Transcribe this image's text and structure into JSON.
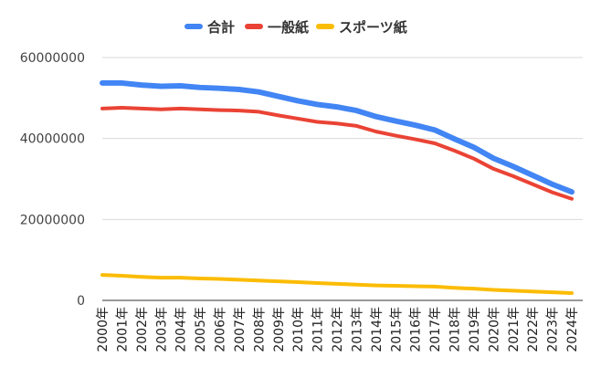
{
  "chart_data": {
    "type": "line",
    "title": "",
    "xlabel": "",
    "ylabel": "",
    "categories": [
      "2000年",
      "2001年",
      "2002年",
      "2003年",
      "2004年",
      "2005年",
      "2006年",
      "2007年",
      "2008年",
      "2009年",
      "2010年",
      "2011年",
      "2012年",
      "2013年",
      "2014年",
      "2015年",
      "2016年",
      "2017年",
      "2018年",
      "2019年",
      "2020年",
      "2021年",
      "2022年",
      "2023年",
      "2024年"
    ],
    "ylim": [
      0,
      60000000
    ],
    "yticks": [
      0,
      20000000,
      40000000,
      60000000
    ],
    "ytick_labels": [
      "0",
      "20000000",
      "40000000",
      "60000000"
    ],
    "grid": true,
    "legend_position": "top",
    "series": [
      {
        "name": "合計",
        "color": "#4285F4",
        "values": [
          53700000,
          53700000,
          53200000,
          52900000,
          53000000,
          52600000,
          52400000,
          52100000,
          51500000,
          50400000,
          49300000,
          48400000,
          47800000,
          46900000,
          45400000,
          44300000,
          43300000,
          42100000,
          39900000,
          37800000,
          35100000,
          33100000,
          30900000,
          28700000,
          26800000
        ]
      },
      {
        "name": "一般紙",
        "color": "#EA4335",
        "values": [
          47400000,
          47600000,
          47400000,
          47200000,
          47400000,
          47200000,
          47000000,
          46900000,
          46600000,
          45700000,
          44900000,
          44100000,
          43700000,
          43100000,
          41700000,
          40700000,
          39800000,
          38800000,
          37000000,
          35000000,
          32500000,
          30700000,
          28700000,
          26700000,
          25100000
        ]
      },
      {
        "name": "スポーツ紙",
        "color": "#FBBC04",
        "values": [
          6300000,
          6100000,
          5800000,
          5600000,
          5600000,
          5400000,
          5300000,
          5100000,
          4900000,
          4700000,
          4500000,
          4300000,
          4100000,
          3900000,
          3700000,
          3600000,
          3500000,
          3400000,
          3100000,
          2900000,
          2600000,
          2400000,
          2200000,
          2000000,
          1800000
        ]
      }
    ]
  }
}
